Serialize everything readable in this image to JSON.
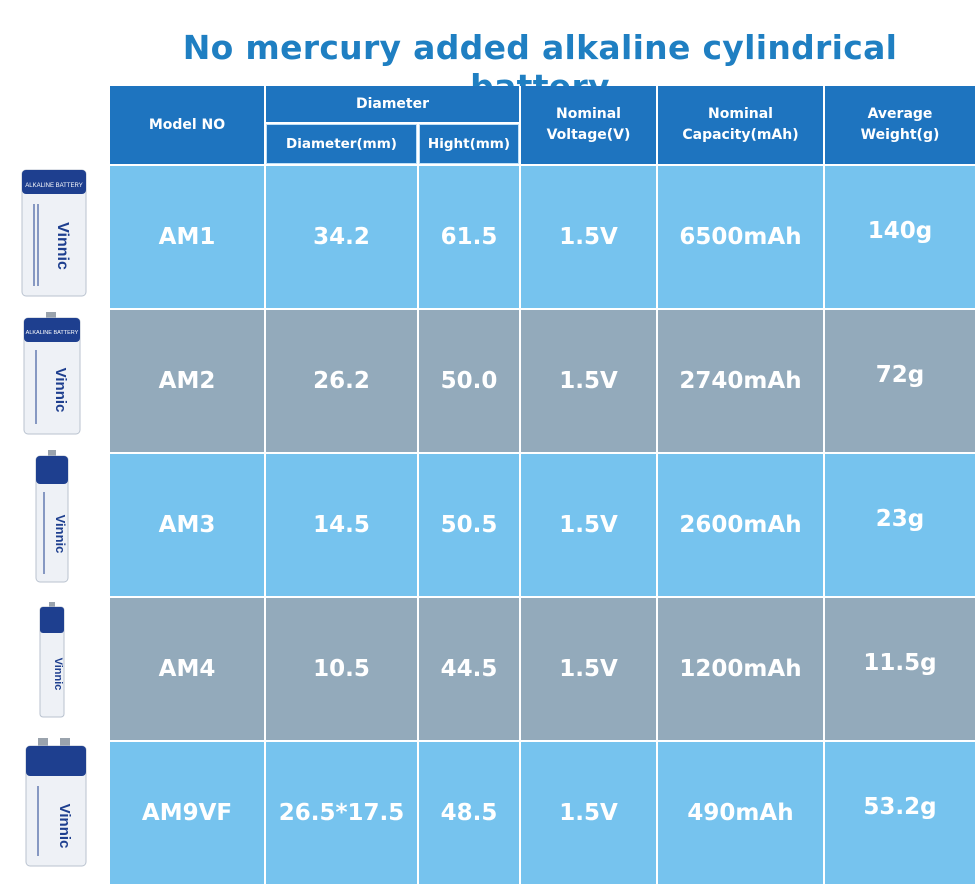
{
  "title": "No mercury added alkaline cylindrical battery",
  "columns": {
    "model": "Model NO",
    "diameter_group": "Diameter",
    "diameter_mm": "Diameter(mm)",
    "hight_mm": "Hight(mm)",
    "voltage_l1": "Nominal",
    "voltage_l2": "Voltage(V)",
    "capacity_l1": "Nominal",
    "capacity_l2": "Capacity(mAh)",
    "weight_l1": "Average",
    "weight_l2": "Weight(g)"
  },
  "rows": [
    {
      "model": "AM1",
      "diameter": "34.2",
      "hight": "61.5",
      "voltage": "1.5V",
      "capacity": "6500mAh",
      "weight": "140g"
    },
    {
      "model": "AM2",
      "diameter": "26.2",
      "hight": "50.0",
      "voltage": "1.5V",
      "capacity": "2740mAh",
      "weight": "72g"
    },
    {
      "model": "AM3",
      "diameter": "14.5",
      "hight": "50.5",
      "voltage": "1.5V",
      "capacity": "2600mAh",
      "weight": "23g"
    },
    {
      "model": "AM4",
      "diameter": "10.5",
      "hight": "44.5",
      "voltage": "1.5V",
      "capacity": "1200mAh",
      "weight": "11.5g"
    },
    {
      "model": "AM9VF",
      "diameter": "26.5*17.5",
      "hight": "48.5",
      "voltage": "1.5V",
      "capacity": "490mAh",
      "weight": "53.2g"
    }
  ],
  "battery_label": {
    "brand": "Vinnic",
    "band": "ALKALINE BATTERY"
  },
  "colors": {
    "title": "#1f7fc2",
    "header": "#1e74bf",
    "row_light": "#76c3ee",
    "row_gray": "#93aabb",
    "battery_blue": "#1e3f8f"
  }
}
